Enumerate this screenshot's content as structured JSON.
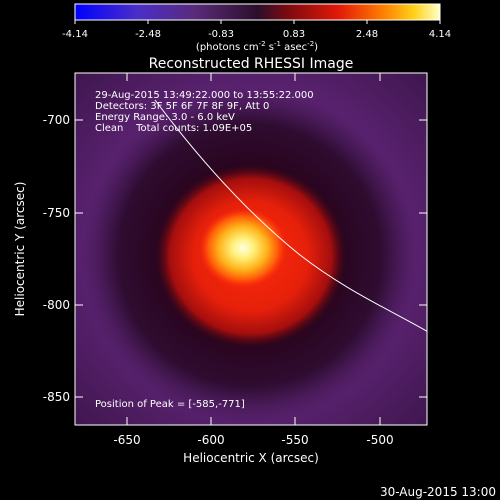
{
  "colorbar": {
    "ticks": [
      "-4.14",
      "-2.48",
      "-0.83",
      "0.83",
      "2.48",
      "4.14"
    ],
    "units": {
      "prefix": "(photons cm",
      "exp1": "-2",
      "mid1": " s",
      "exp2": "-1",
      "mid2": " asec",
      "exp3": "-2",
      "suffix": ")"
    }
  },
  "plot": {
    "title": "Reconstructed RHESSI Image",
    "xlabel": "Heliocentric X (arcsec)",
    "ylabel": "Heliocentric Y (arcsec)",
    "xticks": [
      "-650",
      "-600",
      "-550",
      "-500"
    ],
    "yticks": [
      "-700",
      "-750",
      "-800",
      "-850"
    ]
  },
  "info": {
    "line1": "29-Aug-2015 13:49:22.000 to 13:55:22.000",
    "line2": "Detectors: 3F 5F 6F 7F 8F 9F, Att 0",
    "line3": "Energy Range: 3.0 - 6.0 keV",
    "line4": "Clean    Total counts: 1.09E+05",
    "peak": "Position of Peak = [-585,-771]"
  },
  "footer": {
    "timestamp": "30-Aug-2015 13:00"
  },
  "colors": {
    "background": "#000000"
  }
}
